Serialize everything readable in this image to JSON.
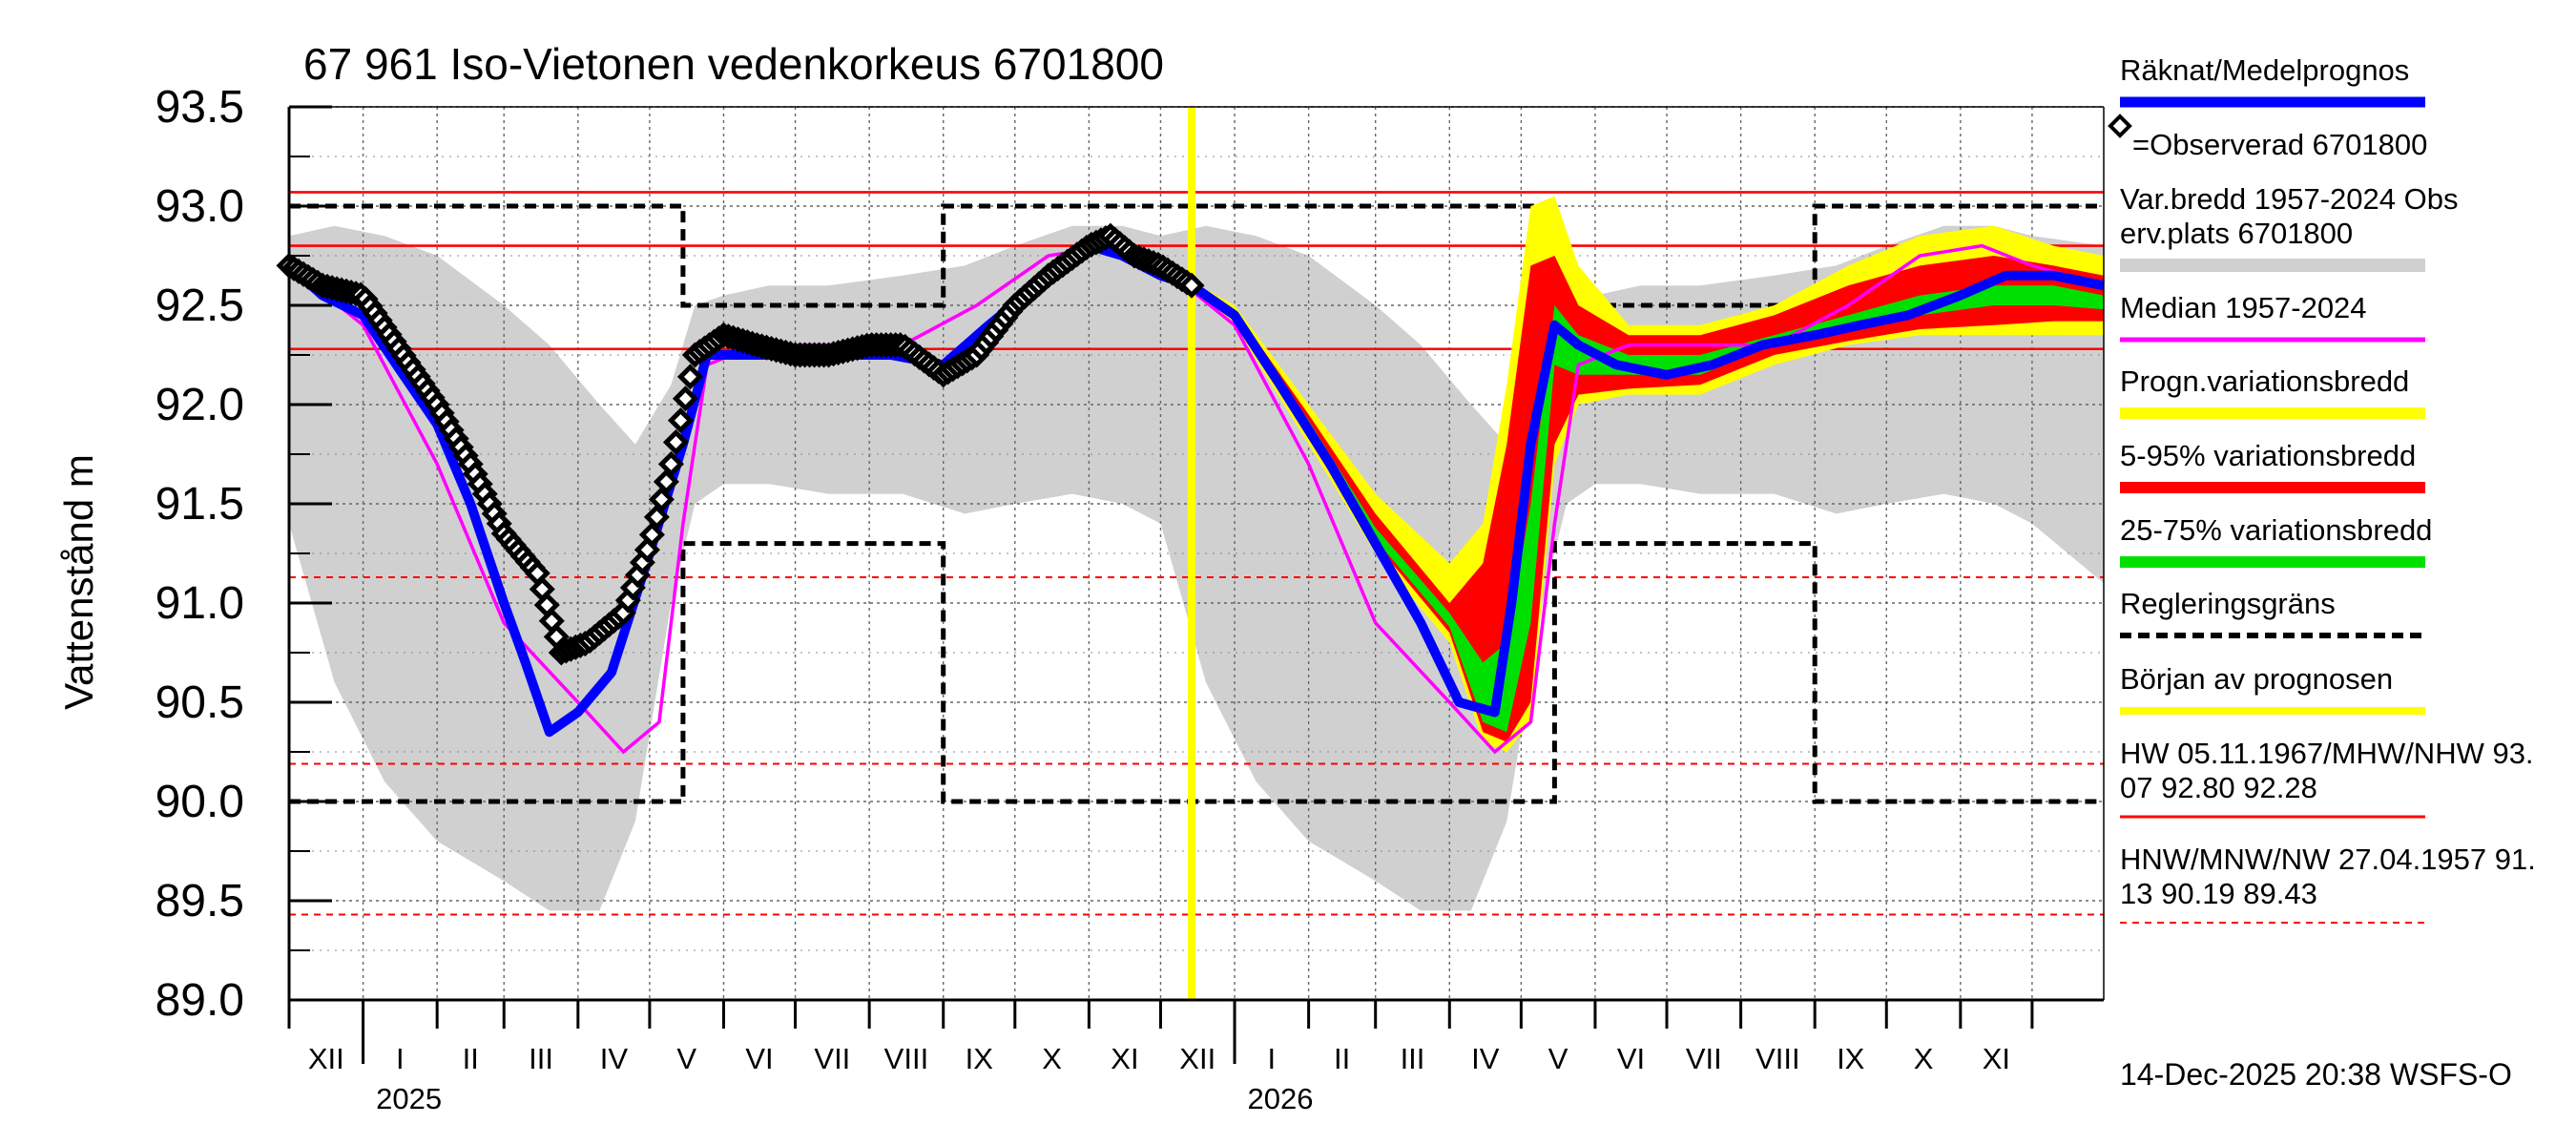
{
  "chart_data": {
    "type": "line",
    "title": "67 961 Iso-Vietonen vedenkorkeus 6701800",
    "ylabel": "Vattenstånd m",
    "ylim": [
      89.0,
      93.5
    ],
    "yticks": [
      "93.5",
      "93.0",
      "92.5",
      "92.0",
      "91.5",
      "91.0",
      "90.5",
      "90.0",
      "89.5",
      "89.0"
    ],
    "x_range": [
      "2024-12-01",
      "2026-12-31"
    ],
    "month_labels": [
      "XII",
      "I",
      "II",
      "III",
      "IV",
      "V",
      "VI",
      "VII",
      "VIII",
      "IX",
      "X",
      "XI",
      "XII",
      "I",
      "II",
      "III",
      "IV",
      "V",
      "VI",
      "VII",
      "VIII",
      "IX",
      "X",
      "XI"
    ],
    "year_labels": [
      "2025",
      "2026"
    ],
    "grid": true,
    "forecast_start": "2025-12-14",
    "reference_lines": {
      "HW": 93.07,
      "MHW": 92.8,
      "NHW": 92.28,
      "HNW": 91.13,
      "MNW": 90.19,
      "NW": 89.43
    },
    "legend": {
      "position": "right",
      "entries": [
        {
          "key": "forecast",
          "label": "Räknat/Medelprognos",
          "color": "#0000ff"
        },
        {
          "key": "observed",
          "label": "=Observerad 6701800",
          "color": "#000000"
        },
        {
          "key": "range",
          "label": "Var.bredd 1957-2024   Obs erv.plats 6701800",
          "line1": "Var.bredd 1957-2024   Obs",
          "line2": "erv.plats 6701800",
          "color": "#d0d0d0"
        },
        {
          "key": "median",
          "label": "Median 1957-2024",
          "color": "#ff00ff"
        },
        {
          "key": "prog",
          "label": "Progn.variationsbredd",
          "color": "#ffff00"
        },
        {
          "key": "p595",
          "label": "5-95% variationsbredd",
          "color": "#ff0000"
        },
        {
          "key": "p2575",
          "label": "25-75% variationsbredd",
          "color": "#00e000"
        },
        {
          "key": "reg",
          "label": "Regleringsgräns",
          "color": "#000000"
        },
        {
          "key": "start",
          "label": "Början av prognosen",
          "color": "#ffff00"
        },
        {
          "key": "hw",
          "label": "HW 05.11.1967/MHW/NHW 93. 07 92.80 92.28",
          "line1": "HW 05.11.1967/MHW/NHW 93.",
          "line2": "07 92.80 92.28",
          "color": "#ff0000"
        },
        {
          "key": "nw",
          "label": "HNW/MNW/NW 27.04.1957 91. 13 90.19 89.43",
          "line1": "HNW/MNW/NW 27.04.1957 91.",
          "line2": "13 90.19 89.43",
          "color": "#ff0000"
        }
      ]
    },
    "timestamp": "14-Dec-2025 20:38 WSFS-O",
    "historical_range": {
      "x": [
        "2024-12-01",
        "2024-12-20",
        "2025-01-10",
        "2025-02-01",
        "2025-03-01",
        "2025-03-20",
        "2025-04-10",
        "2025-04-25",
        "2025-05-10",
        "2025-05-20",
        "2025-06-01",
        "2025-06-20",
        "2025-07-15",
        "2025-08-15",
        "2025-09-10",
        "2025-10-01",
        "2025-10-25",
        "2025-11-15",
        "2025-12-01",
        "2025-12-20",
        "2026-01-10",
        "2026-02-01",
        "2026-03-01",
        "2026-03-20",
        "2026-04-10",
        "2026-04-25",
        "2026-05-10",
        "2026-05-20",
        "2026-06-01",
        "2026-06-20",
        "2026-07-15",
        "2026-08-15",
        "2026-09-10",
        "2026-10-01",
        "2026-10-25",
        "2026-11-15",
        "2026-12-01",
        "2026-12-31"
      ],
      "max": [
        92.85,
        92.9,
        92.85,
        92.75,
        92.5,
        92.3,
        92.0,
        91.8,
        92.1,
        92.5,
        92.55,
        92.6,
        92.6,
        92.65,
        92.7,
        92.8,
        92.9,
        92.9,
        92.85,
        92.9,
        92.85,
        92.75,
        92.5,
        92.3,
        92.0,
        91.8,
        92.1,
        92.5,
        92.55,
        92.6,
        92.6,
        92.65,
        92.7,
        92.8,
        92.9,
        92.9,
        92.85,
        92.8
      ],
      "min": [
        91.4,
        90.6,
        90.1,
        89.8,
        89.6,
        89.45,
        89.45,
        89.9,
        91.0,
        91.5,
        91.6,
        91.6,
        91.55,
        91.55,
        91.45,
        91.5,
        91.55,
        91.5,
        91.4,
        90.6,
        90.1,
        89.8,
        89.6,
        89.45,
        89.45,
        89.9,
        91.0,
        91.5,
        91.6,
        91.6,
        91.55,
        91.55,
        91.45,
        91.5,
        91.55,
        91.5,
        91.4,
        91.1
      ]
    },
    "regulation_upper": {
      "x": [
        "2024-12-01",
        "2025-05-15",
        "2025-05-15",
        "2025-09-01",
        "2025-09-01",
        "2025-11-30",
        "2025-11-30",
        "2026-05-15",
        "2026-05-15",
        "2026-09-01",
        "2026-09-01",
        "2026-12-31"
      ],
      "y": [
        93.0,
        93.0,
        92.5,
        92.5,
        93.0,
        93.0,
        93.0,
        93.0,
        92.5,
        92.5,
        93.0,
        93.0
      ]
    },
    "regulation_lower": {
      "x": [
        "2024-12-01",
        "2025-05-15",
        "2025-05-15",
        "2025-09-01",
        "2025-09-01",
        "2025-11-30",
        "2025-11-30",
        "2026-05-15",
        "2026-05-15",
        "2026-09-01",
        "2026-09-01",
        "2026-12-31"
      ],
      "y": [
        90.0,
        90.0,
        91.3,
        91.3,
        90.0,
        90.0,
        90.0,
        90.0,
        91.3,
        91.3,
        90.0,
        90.0
      ]
    },
    "median": {
      "x": [
        "2024-12-01",
        "2025-01-01",
        "2025-02-01",
        "2025-03-01",
        "2025-04-01",
        "2025-04-20",
        "2025-05-05",
        "2025-05-15",
        "2025-05-25",
        "2025-06-15",
        "2025-07-15",
        "2025-08-15",
        "2025-09-15",
        "2025-10-15",
        "2025-11-10",
        "2025-12-01",
        "2026-01-01",
        "2026-02-01",
        "2026-03-01",
        "2026-04-01",
        "2026-04-20",
        "2026-05-05",
        "2026-05-15",
        "2026-05-25",
        "2026-06-15",
        "2026-07-15",
        "2026-08-15",
        "2026-09-15",
        "2026-10-15",
        "2026-11-10",
        "2026-12-01",
        "2026-12-31"
      ],
      "y": [
        92.7,
        92.4,
        91.7,
        90.9,
        90.5,
        90.25,
        90.4,
        91.4,
        92.2,
        92.3,
        92.3,
        92.3,
        92.5,
        92.75,
        92.8,
        92.7,
        92.4,
        91.7,
        90.9,
        90.5,
        90.25,
        90.4,
        91.4,
        92.2,
        92.3,
        92.3,
        92.3,
        92.5,
        92.75,
        92.8,
        92.7,
        92.6
      ]
    },
    "observed": {
      "x": [
        "2024-12-01",
        "2024-12-15",
        "2025-01-01",
        "2025-01-15",
        "2025-02-01",
        "2025-02-15",
        "2025-03-01",
        "2025-03-15",
        "2025-03-25",
        "2025-04-05",
        "2025-04-20",
        "2025-05-01",
        "2025-05-10",
        "2025-05-20",
        "2025-06-01",
        "2025-06-15",
        "2025-07-01",
        "2025-07-15",
        "2025-08-01",
        "2025-08-15",
        "2025-09-01",
        "2025-09-15",
        "2025-10-01",
        "2025-10-15",
        "2025-11-01",
        "2025-11-10",
        "2025-11-20",
        "2025-12-01",
        "2025-12-14"
      ],
      "y": [
        92.7,
        92.6,
        92.55,
        92.3,
        92.0,
        91.7,
        91.35,
        91.15,
        90.75,
        90.8,
        90.95,
        91.3,
        91.7,
        92.25,
        92.35,
        92.3,
        92.25,
        92.25,
        92.3,
        92.3,
        92.15,
        92.25,
        92.5,
        92.65,
        92.8,
        92.85,
        92.75,
        92.7,
        92.6
      ]
    },
    "forecast_mean": {
      "x": [
        "2024-12-01",
        "2024-12-15",
        "2025-01-01",
        "2025-01-15",
        "2025-02-01",
        "2025-02-15",
        "2025-03-01",
        "2025-03-10",
        "2025-03-20",
        "2025-04-01",
        "2025-04-15",
        "2025-05-01",
        "2025-05-15",
        "2025-05-25",
        "2025-06-10",
        "2025-07-01",
        "2025-07-20",
        "2025-08-10",
        "2025-09-01",
        "2025-09-20",
        "2025-10-10",
        "2025-11-01",
        "2025-11-15",
        "2025-12-01",
        "2025-12-14",
        "2026-01-01",
        "2026-01-20",
        "2026-02-10",
        "2026-03-01",
        "2026-03-20",
        "2026-04-05",
        "2026-04-20",
        "2026-04-27",
        "2026-05-05",
        "2026-05-15",
        "2026-05-25",
        "2026-06-10",
        "2026-07-01",
        "2026-07-20",
        "2026-08-10",
        "2026-09-01",
        "2026-09-20",
        "2026-10-10",
        "2026-11-01",
        "2026-11-20",
        "2026-12-10",
        "2026-12-31"
      ],
      "y": [
        92.7,
        92.55,
        92.45,
        92.2,
        91.9,
        91.5,
        91.0,
        90.7,
        90.35,
        90.45,
        90.65,
        91.25,
        91.8,
        92.25,
        92.25,
        92.25,
        92.25,
        92.25,
        92.2,
        92.4,
        92.6,
        92.8,
        92.75,
        92.65,
        92.6,
        92.45,
        92.1,
        91.7,
        91.3,
        90.9,
        90.5,
        90.45,
        91.0,
        91.8,
        92.4,
        92.3,
        92.2,
        92.15,
        92.2,
        92.3,
        92.35,
        92.4,
        92.45,
        92.55,
        92.65,
        92.65,
        92.6
      ]
    },
    "forecast_bands": {
      "x": [
        "2025-12-14",
        "2026-01-01",
        "2026-02-01",
        "2026-03-01",
        "2026-04-01",
        "2026-04-15",
        "2026-04-25",
        "2026-05-05",
        "2026-05-15",
        "2026-05-25",
        "2026-06-15",
        "2026-07-15",
        "2026-08-15",
        "2026-09-15",
        "2026-10-15",
        "2026-11-15",
        "2026-12-10",
        "2026-12-31"
      ],
      "p_max": [
        92.62,
        92.5,
        92.0,
        91.55,
        91.2,
        91.4,
        92.1,
        93.0,
        93.05,
        92.7,
        92.4,
        92.4,
        92.5,
        92.7,
        92.85,
        92.9,
        92.8,
        92.75
      ],
      "p_min": [
        92.58,
        92.4,
        91.8,
        91.25,
        90.8,
        90.3,
        90.25,
        90.4,
        91.7,
        92.0,
        92.05,
        92.05,
        92.2,
        92.3,
        92.35,
        92.35,
        92.35,
        92.35
      ],
      "r_max": [
        92.61,
        92.48,
        91.95,
        91.45,
        91.0,
        91.2,
        91.8,
        92.7,
        92.75,
        92.5,
        92.35,
        92.35,
        92.45,
        92.6,
        92.7,
        92.75,
        92.7,
        92.65
      ],
      "r_min": [
        92.59,
        92.42,
        91.85,
        91.3,
        90.85,
        90.35,
        90.3,
        90.5,
        91.8,
        92.05,
        92.08,
        92.1,
        92.25,
        92.32,
        92.38,
        92.4,
        92.42,
        92.42
      ],
      "g_max": [
        92.605,
        92.46,
        91.92,
        91.38,
        90.95,
        90.7,
        90.8,
        91.5,
        92.5,
        92.35,
        92.25,
        92.25,
        92.35,
        92.45,
        92.55,
        92.6,
        92.6,
        92.55
      ],
      "g_min": [
        92.595,
        92.44,
        91.88,
        91.32,
        90.88,
        90.4,
        90.35,
        90.9,
        92.2,
        92.15,
        92.15,
        92.15,
        92.3,
        92.38,
        92.45,
        92.5,
        92.5,
        92.48
      ]
    }
  }
}
